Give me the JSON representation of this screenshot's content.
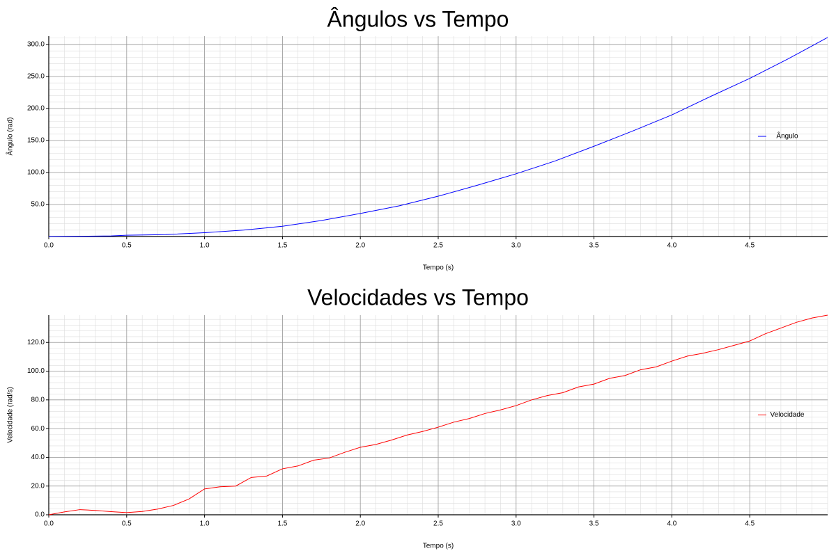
{
  "chart_data": [
    {
      "type": "line",
      "title": "Ângulos vs Tempo",
      "x_label": "Tempo (s)",
      "y_label": "Ângulo (rad)",
      "x": [
        0,
        0.25,
        0.4,
        0.5,
        0.75,
        1.0,
        1.25,
        1.5,
        1.75,
        2.0,
        2.25,
        2.5,
        2.75,
        3.0,
        3.25,
        3.5,
        3.75,
        4.0,
        4.25,
        4.5,
        4.75,
        5.0
      ],
      "series": [
        {
          "name": "Ângulo",
          "color": "#0000ff",
          "values": [
            0,
            0.5,
            1,
            2,
            3,
            6,
            10,
            16,
            25,
            36,
            48,
            63,
            80,
            98,
            118,
            141,
            165,
            190,
            219,
            247,
            278,
            311
          ]
        }
      ],
      "xlim": [
        0,
        5.0
      ],
      "ylim": [
        0,
        313
      ],
      "xticks": [
        {
          "value": 0,
          "label": "0.0"
        },
        0.5,
        {
          "value": 1,
          "label": "1.0"
        },
        1.5,
        {
          "value": 2,
          "label": "2.0"
        },
        2.5,
        {
          "value": 3,
          "label": "3.0"
        },
        3.5,
        {
          "value": 4,
          "label": "4.0"
        },
        4.5
      ],
      "yticks": [
        {
          "value": 50,
          "label": "50.0"
        },
        {
          "value": 100,
          "label": "100.0"
        },
        {
          "value": 150,
          "label": "150.0"
        },
        {
          "value": 200,
          "label": "200.0"
        },
        {
          "value": 250,
          "label": "250.0"
        },
        {
          "value": 300,
          "label": "300.0"
        }
      ],
      "grid": true,
      "legend": "right"
    },
    {
      "type": "line",
      "title": "Velocidades vs Tempo",
      "x_label": "Tempo (s)",
      "y_label": "Velocidade (rad/s)",
      "x": [
        0,
        0.1,
        0.2,
        0.3,
        0.4,
        0.5,
        0.6,
        0.7,
        0.8,
        0.9,
        1.0,
        1.1,
        1.2,
        1.3,
        1.4,
        1.5,
        1.6,
        1.7,
        1.8,
        1.9,
        2.0,
        2.1,
        2.2,
        2.3,
        2.4,
        2.5,
        2.6,
        2.7,
        2.8,
        2.9,
        3.0,
        3.1,
        3.2,
        3.3,
        3.4,
        3.5,
        3.6,
        3.7,
        3.8,
        3.9,
        4.0,
        4.1,
        4.2,
        4.3,
        4.4,
        4.5,
        4.6,
        4.7,
        4.8,
        4.9,
        5.0
      ],
      "series": [
        {
          "name": "Velocidade",
          "color": "#ff0000",
          "values": [
            0,
            2,
            3.6,
            3,
            2.2,
            1.5,
            2.3,
            4,
            6.5,
            11,
            18,
            19.5,
            20,
            26,
            27,
            32,
            34,
            38,
            39.5,
            43.5,
            47,
            49,
            52,
            55.5,
            58,
            61,
            64.5,
            67,
            70.5,
            73,
            76,
            80,
            83,
            85,
            89,
            91,
            95,
            97,
            101,
            103,
            107,
            110.5,
            112.5,
            115,
            118,
            121,
            126,
            130,
            134,
            137,
            139
          ]
        }
      ],
      "xlim": [
        0,
        5.0
      ],
      "ylim": [
        0,
        139
      ],
      "xticks": [
        {
          "value": 0,
          "label": "0.0"
        },
        0.5,
        {
          "value": 1,
          "label": "1.0"
        },
        1.5,
        {
          "value": 2,
          "label": "2.0"
        },
        2.5,
        {
          "value": 3,
          "label": "3.0"
        },
        3.5,
        {
          "value": 4,
          "label": "4.0"
        },
        4.5
      ],
      "yticks": [
        {
          "value": 0,
          "label": "0.0"
        },
        {
          "value": 20,
          "label": "20.0"
        },
        {
          "value": 40,
          "label": "40.0"
        },
        {
          "value": 60,
          "label": "60.0"
        },
        {
          "value": 80,
          "label": "80.0"
        },
        {
          "value": 100,
          "label": "100.0"
        },
        {
          "value": 120,
          "label": "120.0"
        }
      ],
      "grid": true,
      "legend": "right"
    }
  ]
}
